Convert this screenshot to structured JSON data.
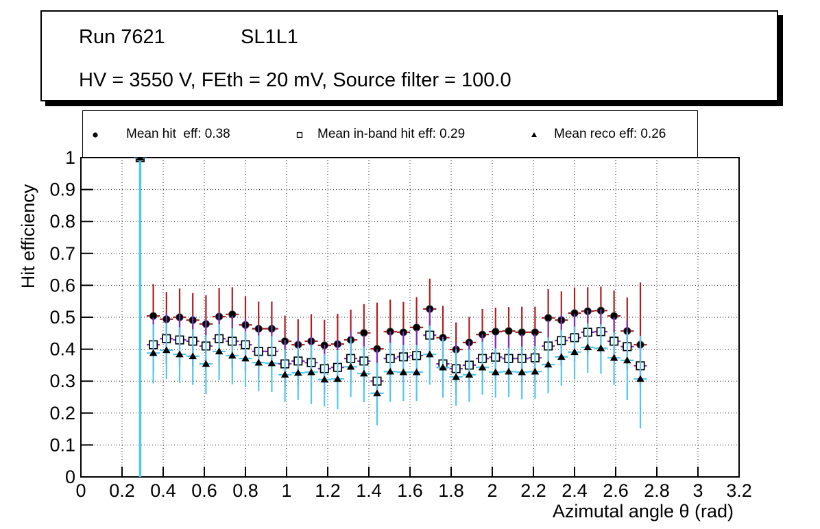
{
  "title_box": {
    "line1_left": "Run 7621",
    "line1_right": "SL1L1",
    "line2": "HV = 3550 V, FEth = 20 mV, Source filter = 100.0"
  },
  "chart_data": {
    "type": "scatter",
    "subtype": "errorbar-efficiency",
    "x_title": "Azimutal angle θ (rad)",
    "y_title": "Hit efficiency",
    "xlim": [
      0,
      3.2
    ],
    "ylim": [
      0,
      1
    ],
    "grid": true,
    "grid_style": "dotted",
    "legend_position": "top",
    "x_tick_values": [
      0,
      0.2,
      0.4,
      0.6,
      0.8,
      1,
      1.2,
      1.4,
      1.6,
      1.8,
      2,
      2.2,
      2.4,
      2.6,
      2.8,
      3,
      3.2
    ],
    "x_tick_labels": [
      "0",
      "0.2",
      "0.4",
      "0.6",
      "0.8",
      "1",
      "1.2",
      "1.4",
      "1.6",
      "1.8",
      "2",
      "2.2",
      "2.4",
      "2.6",
      "2.8",
      "3",
      "3.2"
    ],
    "y_tick_values": [
      0,
      0.1,
      0.2,
      0.3,
      0.4,
      0.5,
      0.6,
      0.7,
      0.8,
      0.9,
      1
    ],
    "y_tick_labels": [
      "0",
      "0.1",
      "0.2",
      "0.3",
      "0.4",
      "0.5",
      "0.6",
      "0.7",
      "0.8",
      "0.9",
      "1"
    ],
    "bin_half_width": 0.032,
    "x": [
      0.288,
      0.352,
      0.416,
      0.48,
      0.544,
      0.608,
      0.672,
      0.736,
      0.8,
      0.864,
      0.928,
      0.992,
      1.056,
      1.12,
      1.184,
      1.248,
      1.312,
      1.376,
      1.44,
      1.504,
      1.568,
      1.632,
      1.696,
      1.76,
      1.824,
      1.888,
      1.952,
      2.016,
      2.08,
      2.144,
      2.208,
      2.272,
      2.336,
      2.4,
      2.464,
      2.528,
      2.592,
      2.656,
      2.72
    ],
    "series": [
      {
        "name": "hit",
        "legend_label": "Mean hit  eff: 0.38",
        "mean": 0.38,
        "marker": "filled-circle",
        "marker_color": "#000000",
        "err_color": "#b01c22",
        "values": [
          1.0,
          0.504,
          0.494,
          0.5,
          0.491,
          0.479,
          0.502,
          0.509,
          0.476,
          0.464,
          0.464,
          0.425,
          0.414,
          0.425,
          0.412,
          0.416,
          0.429,
          0.451,
          0.401,
          0.455,
          0.453,
          0.468,
          0.526,
          0.436,
          0.399,
          0.421,
          0.446,
          0.455,
          0.457,
          0.453,
          0.453,
          0.498,
          0.491,
          0.513,
          0.519,
          0.521,
          0.504,
          0.457,
          0.414
        ],
        "err_up": [
          0,
          0.1,
          0.085,
          0.09,
          0.085,
          0.09,
          0.09,
          0.085,
          0.09,
          0.085,
          0.085,
          0.08,
          0.08,
          0.085,
          0.08,
          0.095,
          0.095,
          0.09,
          0.145,
          0.1,
          0.095,
          0.095,
          0.095,
          0.1,
          0.085,
          0.08,
          0.08,
          0.075,
          0.075,
          0.08,
          0.08,
          0.09,
          0.09,
          0.08,
          0.075,
          0.075,
          0.08,
          0.105,
          0.195
        ],
        "err_down": [
          0,
          0.095,
          0.085,
          0.09,
          0.085,
          0.09,
          0.09,
          0.085,
          0.09,
          0.085,
          0.085,
          0.08,
          0.08,
          0.085,
          0.08,
          0.09,
          0.09,
          0.09,
          0.14,
          0.095,
          0.09,
          0.09,
          0.095,
          0.095,
          0.085,
          0.08,
          0.08,
          0.075,
          0.075,
          0.08,
          0.08,
          0.085,
          0.085,
          0.08,
          0.075,
          0.075,
          0.08,
          0.06,
          0.055
        ]
      },
      {
        "name": "in-band",
        "legend_label": "Mean in-band hit eff: 0.29",
        "mean": 0.29,
        "marker": "open-square",
        "marker_color": "#000000",
        "err_color": "#7a2fc6",
        "values": [
          1.0,
          0.414,
          0.433,
          0.429,
          0.425,
          0.41,
          0.433,
          0.425,
          0.414,
          0.393,
          0.393,
          0.354,
          0.363,
          0.358,
          0.339,
          0.343,
          0.371,
          0.363,
          0.3,
          0.371,
          0.376,
          0.38,
          0.444,
          0.354,
          0.339,
          0.35,
          0.371,
          0.375,
          0.371,
          0.371,
          0.373,
          0.41,
          0.427,
          0.436,
          0.453,
          0.455,
          0.425,
          0.408,
          0.348
        ],
        "err_up": [
          0,
          0.085,
          0.08,
          0.08,
          0.08,
          0.08,
          0.08,
          0.08,
          0.08,
          0.08,
          0.08,
          0.075,
          0.075,
          0.08,
          0.075,
          0.085,
          0.085,
          0.08,
          0.1,
          0.085,
          0.08,
          0.08,
          0.085,
          0.085,
          0.08,
          0.075,
          0.075,
          0.07,
          0.07,
          0.075,
          0.075,
          0.08,
          0.08,
          0.075,
          0.07,
          0.07,
          0.075,
          0.08,
          0.065
        ],
        "err_down": [
          0,
          0.085,
          0.08,
          0.08,
          0.08,
          0.08,
          0.08,
          0.08,
          0.08,
          0.08,
          0.08,
          0.075,
          0.075,
          0.08,
          0.075,
          0.08,
          0.08,
          0.08,
          0.1,
          0.08,
          0.08,
          0.08,
          0.085,
          0.08,
          0.08,
          0.075,
          0.075,
          0.07,
          0.07,
          0.075,
          0.075,
          0.08,
          0.08,
          0.075,
          0.07,
          0.07,
          0.075,
          0.07,
          0.065
        ]
      },
      {
        "name": "reco",
        "legend_label": "Mean reco eff: 0.26",
        "mean": 0.26,
        "marker": "filled-triangle",
        "marker_color": "#000000",
        "err_color": "#4ec8f0",
        "values": [
          1.0,
          0.388,
          0.397,
          0.384,
          0.378,
          0.354,
          0.393,
          0.38,
          0.371,
          0.358,
          0.356,
          0.32,
          0.326,
          0.328,
          0.305,
          0.307,
          0.345,
          0.324,
          0.262,
          0.33,
          0.328,
          0.328,
          0.384,
          0.343,
          0.313,
          0.32,
          0.343,
          0.328,
          0.33,
          0.328,
          0.33,
          0.352,
          0.376,
          0.391,
          0.406,
          0.403,
          0.373,
          0.365,
          0.307
        ],
        "err_up": [
          0,
          0.09,
          0.085,
          0.085,
          0.085,
          0.09,
          0.085,
          0.085,
          0.085,
          0.085,
          0.085,
          0.08,
          0.08,
          0.085,
          0.08,
          0.09,
          0.09,
          0.085,
          0.095,
          0.09,
          0.085,
          0.085,
          0.09,
          0.09,
          0.085,
          0.08,
          0.08,
          0.075,
          0.075,
          0.08,
          0.08,
          0.085,
          0.085,
          0.08,
          0.075,
          0.075,
          0.08,
          0.09,
          0.135
        ],
        "err_down": [
          1.0,
          0.095,
          0.09,
          0.09,
          0.09,
          0.095,
          0.09,
          0.09,
          0.09,
          0.09,
          0.09,
          0.085,
          0.085,
          0.1,
          0.085,
          0.095,
          0.095,
          0.09,
          0.1,
          0.095,
          0.09,
          0.09,
          0.095,
          0.095,
          0.09,
          0.085,
          0.085,
          0.08,
          0.08,
          0.085,
          0.085,
          0.09,
          0.09,
          0.085,
          0.08,
          0.08,
          0.085,
          0.125,
          0.155
        ]
      }
    ]
  }
}
